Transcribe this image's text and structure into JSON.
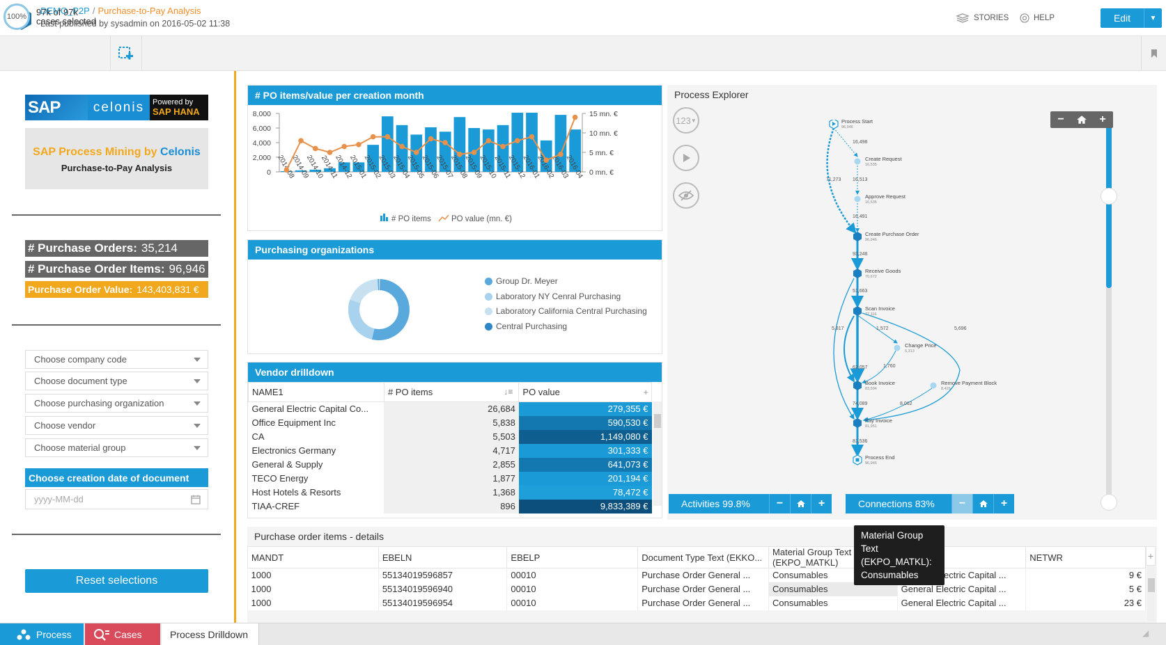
{
  "header": {
    "app_initial": "C",
    "project": "DEMO_P2P",
    "separator": "/",
    "analysis": "Purchase-to-Pay Analysis",
    "published": "Last published by sysadmin on 2016-05-02 11:38",
    "stories_label": "STORIES",
    "help_label": "HELP",
    "edit_label": "Edit"
  },
  "selection": {
    "percent": "100%",
    "count": "97k of 97k",
    "sub": "cases selected"
  },
  "sidebar": {
    "sap_logo": "SAP",
    "celonis_logo": "celonis",
    "powered_by": "Powered by",
    "hana": "SAP HANA",
    "promo_title_a": "SAP Process Mining by ",
    "promo_title_b": "Celonis",
    "promo_sub": "Purchase-to-Pay Analysis",
    "kpi_orders_label": "# Purchase Orders:",
    "kpi_orders_value": "35,214",
    "kpi_items_label": "# Purchase Order Items:",
    "kpi_items_value": "96,946",
    "kpi_value_label": "Purchase Order Value:",
    "kpi_value_value": "143,403,831 €",
    "filters": [
      "Choose company code",
      "Choose document type",
      "Choose purchasing organization",
      "Choose vendor",
      "Choose material group"
    ],
    "date_header": "Choose creation date of document",
    "date_placeholder": "yyyy-MM-dd",
    "reset_label": "Reset selections"
  },
  "chart_panel": {
    "title": "# PO items/value per creation month",
    "legend_items": "# PO items",
    "legend_value": "PO value (mn. €)"
  },
  "chart_data": {
    "type": "bar",
    "categories": [
      "2014-08",
      "2014-09",
      "2014-10",
      "2014-11",
      "2014-12",
      "2015-01",
      "2015-02",
      "2015-03",
      "2015-04",
      "2015-05",
      "2015-06",
      "2015-07",
      "2015-08",
      "2015-09",
      "2015-10",
      "2015-11",
      "2015-12",
      "2016-01",
      "2016-02",
      "2016-03",
      "2016-04"
    ],
    "series": [
      {
        "name": "# PO items",
        "type": "bar",
        "axis": "left",
        "values": [
          100,
          200,
          300,
          500,
          1300,
          1300,
          3700,
          7600,
          6400,
          5100,
          6100,
          5500,
          7500,
          6000,
          5800,
          6400,
          8100,
          8100,
          4300,
          7800,
          5800
        ]
      },
      {
        "name": "PO value (mn. €)",
        "type": "line",
        "axis": "right",
        "values": [
          0.5,
          8,
          6,
          5,
          6.5,
          7,
          9,
          9,
          6.5,
          5,
          8.5,
          7.5,
          4.5,
          5,
          8,
          6.5,
          8,
          9,
          3,
          4.5,
          14
        ]
      }
    ],
    "yticks_left": [
      "0",
      "2,000",
      "4,000",
      "6,000",
      "8,000"
    ],
    "yticks_right": [
      "0 mn. €",
      "5 mn. €",
      "10 mn. €",
      "15 mn. €"
    ],
    "ylim_left": [
      0,
      8000
    ],
    "ylim_right": [
      0,
      15
    ]
  },
  "org_panel": {
    "title": "Purchasing organizations",
    "items": [
      "Group Dr. Meyer",
      "Laboratory NY Cenral Purchasing",
      "Laboratory California Central Purchasing",
      "Central Purchasing"
    ],
    "colors": [
      "#5aa9dc",
      "#a8d2ee",
      "#c7e1f1",
      "#2f87c8"
    ]
  },
  "vendor_panel": {
    "title": "Vendor drilldown",
    "columns": [
      "NAME1",
      "# PO items",
      "PO value"
    ],
    "rows": [
      {
        "name": "General Electric Capital Co...",
        "items": "26,684",
        "value": "279,355 €",
        "color": "#1a9bd7"
      },
      {
        "name": "Office Equipment Inc",
        "items": "5,838",
        "value": "590,530 €",
        "color": "#1478b0"
      },
      {
        "name": "CA",
        "items": "5,503",
        "value": "1,149,080 €",
        "color": "#0e5e90"
      },
      {
        "name": "Electronics Germany",
        "items": "4,717",
        "value": "301,333 €",
        "color": "#1a9bd7"
      },
      {
        "name": "General & Supply",
        "items": "2,855",
        "value": "641,073 €",
        "color": "#1478b0"
      },
      {
        "name": "TECO Energy",
        "items": "1,877",
        "value": "201,194 €",
        "color": "#1a9bd7"
      },
      {
        "name": "Host Hotels & Resorts",
        "items": "1,368",
        "value": "78,472 €",
        "color": "#1e9fd9"
      },
      {
        "name": "TIAA-CREF",
        "items": "896",
        "value": "9,833,389 €",
        "color": "#0c4f7c"
      }
    ]
  },
  "explorer": {
    "title": "Process Explorer",
    "btn_123": "123",
    "activities_label": "Activities 99.8%",
    "connections_label": "Connections 83%",
    "nodes": [
      {
        "name": "Process Start",
        "count": "96,946"
      },
      {
        "name": "Create Request",
        "count": "16,535"
      },
      {
        "name": "Approve Request",
        "count": "16,535"
      },
      {
        "name": "Create Purchase Order",
        "count": "96,946"
      },
      {
        "name": "Receive Goods",
        "count": "70,672"
      },
      {
        "name": "Scan Invoice",
        "count": "77,116"
      },
      {
        "name": "Change Price",
        "count": "5,313"
      },
      {
        "name": "Book Invoice",
        "count": "83,504"
      },
      {
        "name": "Remove Payment Block",
        "count": "8,426"
      },
      {
        "name": "Pay Invoice",
        "count": "81,951"
      },
      {
        "name": "Process End",
        "count": "96,946"
      }
    ],
    "edges": [
      "16,498",
      "16,513",
      "16,491",
      "71,273",
      "93,248",
      "51,663",
      "5,817",
      "1,572",
      "5,696",
      "62,057",
      "1,760",
      "74,089",
      "8,062",
      "81,536"
    ]
  },
  "details": {
    "title": "Purchase order items - details",
    "columns": [
      "MANDT",
      "EBELN",
      "EBELP",
      "Document Type Text (EKKO...",
      "Material Group Text (EKPO_MATKL)",
      "NAME1",
      "NETWR"
    ],
    "rows": [
      [
        "1000",
        "55134019596857",
        "00010",
        "Purchase Order General ...",
        "Consumables",
        "General Electric Capital ...",
        "9 €"
      ],
      [
        "1000",
        "55134019596940",
        "00010",
        "Purchase Order General ...",
        "Consumables",
        "General Electric Capital ...",
        "5 €"
      ],
      [
        "1000",
        "55134019596954",
        "00010",
        "Purchase Order General ...",
        "Consumables",
        "General Electric Capital ...",
        "23 €"
      ]
    ],
    "tooltip": "Material Group Text (EKPO_MATKL): Consumables"
  },
  "tabs": [
    "Process",
    "Cases",
    "Process Drilldown"
  ]
}
